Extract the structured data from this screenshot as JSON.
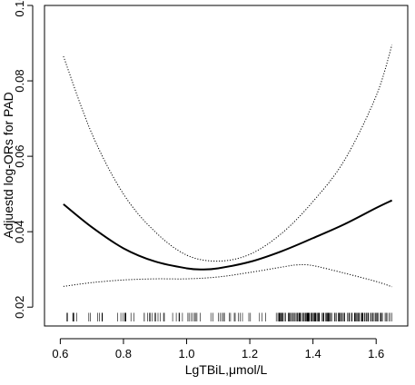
{
  "chart_data": {
    "type": "line",
    "xlabel": "LgTBiL,μmol/L",
    "ylabel": "Adjuestd log-ORs for PAD",
    "xlim": [
      0.55,
      1.7
    ],
    "ylim": [
      0.015,
      0.1
    ],
    "x_ticks": [
      "0.6",
      "0.8",
      "1.0",
      "1.2",
      "1.4",
      "1.6"
    ],
    "y_ticks": [
      "0.02",
      "0.04",
      "0.06",
      "0.08",
      "0.10"
    ],
    "grid": false,
    "series": [
      {
        "style": "solid",
        "x": [
          0.61,
          0.7,
          0.8,
          0.9,
          1.0,
          1.05,
          1.1,
          1.2,
          1.3,
          1.4,
          1.5,
          1.6,
          1.65
        ],
        "y": [
          0.0473,
          0.0412,
          0.0356,
          0.0321,
          0.0303,
          0.03,
          0.0303,
          0.032,
          0.0348,
          0.0383,
          0.042,
          0.0463,
          0.0483
        ]
      },
      {
        "style": "dotted",
        "x": [
          0.61,
          0.7,
          0.8,
          0.9,
          1.0,
          1.1,
          1.2,
          1.3,
          1.4,
          1.5,
          1.6,
          1.65
        ],
        "y": [
          0.0865,
          0.066,
          0.05,
          0.04,
          0.0338,
          0.0322,
          0.034,
          0.0395,
          0.048,
          0.059,
          0.076,
          0.0895
        ]
      },
      {
        "style": "dotted",
        "x": [
          0.61,
          0.7,
          0.8,
          0.9,
          1.0,
          1.1,
          1.2,
          1.3,
          1.35,
          1.4,
          1.5,
          1.6,
          1.65
        ],
        "y": [
          0.0255,
          0.0265,
          0.0272,
          0.0275,
          0.0275,
          0.028,
          0.0292,
          0.0306,
          0.0312,
          0.031,
          0.029,
          0.0268,
          0.0254
        ]
      }
    ],
    "rug": {
      "x_min": 0.61,
      "x_max": 1.65,
      "y_top": 0.0185,
      "y_bottom": 0.0162,
      "count": 220
    },
    "colors": {
      "line": "#000000",
      "background": "#ffffff"
    }
  }
}
